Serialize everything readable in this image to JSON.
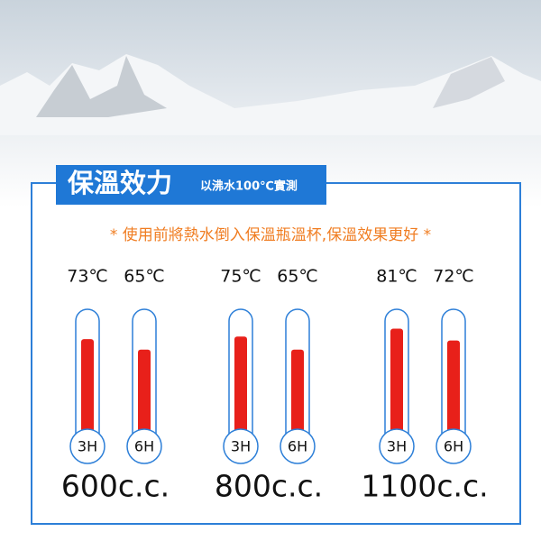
{
  "chart_data": {
    "type": "thermometer",
    "title": "保溫效力",
    "subtitle": "以沸水100℃實測",
    "note": "* 使用前將熱水倒入保溫瓶溫杯,保溫效果更好 *",
    "categories": [
      "600c.c.",
      "800c.c.",
      "1100c.c."
    ],
    "series": [
      {
        "name": "3H",
        "color": "#e8201a",
        "values": [
          73,
          75,
          81
        ],
        "value_labels": [
          "73℃",
          "75℃",
          "81℃"
        ]
      },
      {
        "name": "6H",
        "color": "#e8201a",
        "values": [
          65,
          65,
          72
        ],
        "value_labels": [
          "65℃",
          "65℃",
          "72℃"
        ]
      }
    ]
  }
}
